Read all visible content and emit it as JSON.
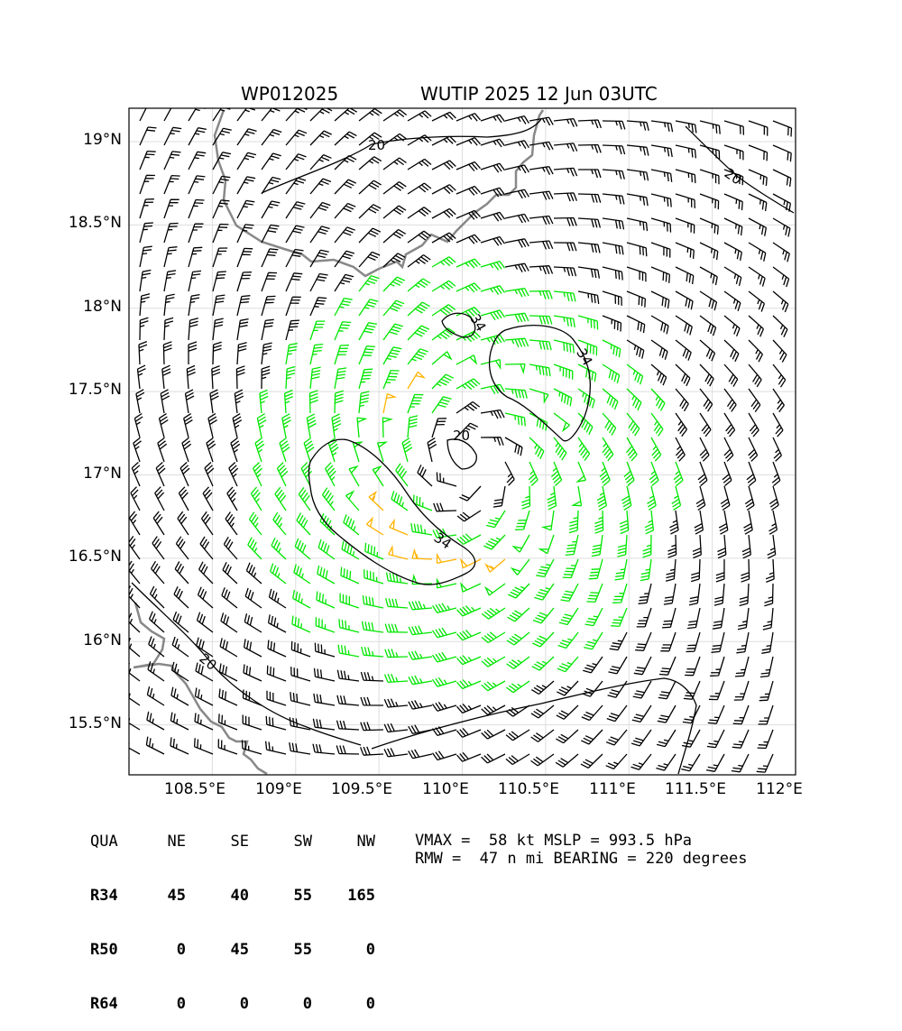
{
  "title": {
    "left": "WP012025",
    "right": "WUTIP 2025 12 Jun 03UTC"
  },
  "axes": {
    "lat_labels": [
      "19°N",
      "18.5°N",
      "18°N",
      "17.5°N",
      "17°N",
      "16.5°N",
      "16°N",
      "15.5°N"
    ],
    "lat_values": [
      19.0,
      18.5,
      18.0,
      17.5,
      17.0,
      16.5,
      16.0,
      15.5
    ],
    "lon_labels": [
      "108.5°E",
      "109°E",
      "109.5°E",
      "110°E",
      "110.5°E",
      "111°E",
      "111.5°E",
      "112°E"
    ],
    "lon_values": [
      108.5,
      109.0,
      109.5,
      110.0,
      110.5,
      111.0,
      111.5,
      112.0
    ],
    "lat_range": [
      15.2,
      19.2
    ],
    "lon_range": [
      108.0,
      112.0
    ],
    "grid": true
  },
  "contour_labels": {
    "c20_north": "20",
    "c20_ne": "20",
    "c20_center": "20",
    "c20_sw": "20",
    "c34_inner": "34",
    "c34_east": "34",
    "c34_southwest": "34"
  },
  "wind_colors": {
    "below_34": "#000000",
    "34_to_50": "#00e600",
    "50_to_64": "#ffb300",
    "above_64": "#ff5a00",
    "coastline": "#888888",
    "grid": "#dddddd"
  },
  "storm": {
    "center_lat": 17.05,
    "center_lon": 110.05,
    "vmax_kt": 58,
    "rmw_nmi": 47
  },
  "radii_table": {
    "header": [
      "QUA",
      "NE",
      "SE",
      "SW",
      "NW"
    ],
    "rows": [
      {
        "label": "R34",
        "values": [
          "45",
          "40",
          "55",
          "165"
        ]
      },
      {
        "label": "R50",
        "values": [
          "0",
          "45",
          "55",
          "0"
        ]
      },
      {
        "label": "R64",
        "values": [
          "0",
          "0",
          "0",
          "0"
        ]
      }
    ]
  },
  "info": {
    "line1": "VMAX =  58 kt MSLP = 993.5 hPa",
    "line2": "RMW =  47 n mi BEARING = 220 degrees"
  }
}
